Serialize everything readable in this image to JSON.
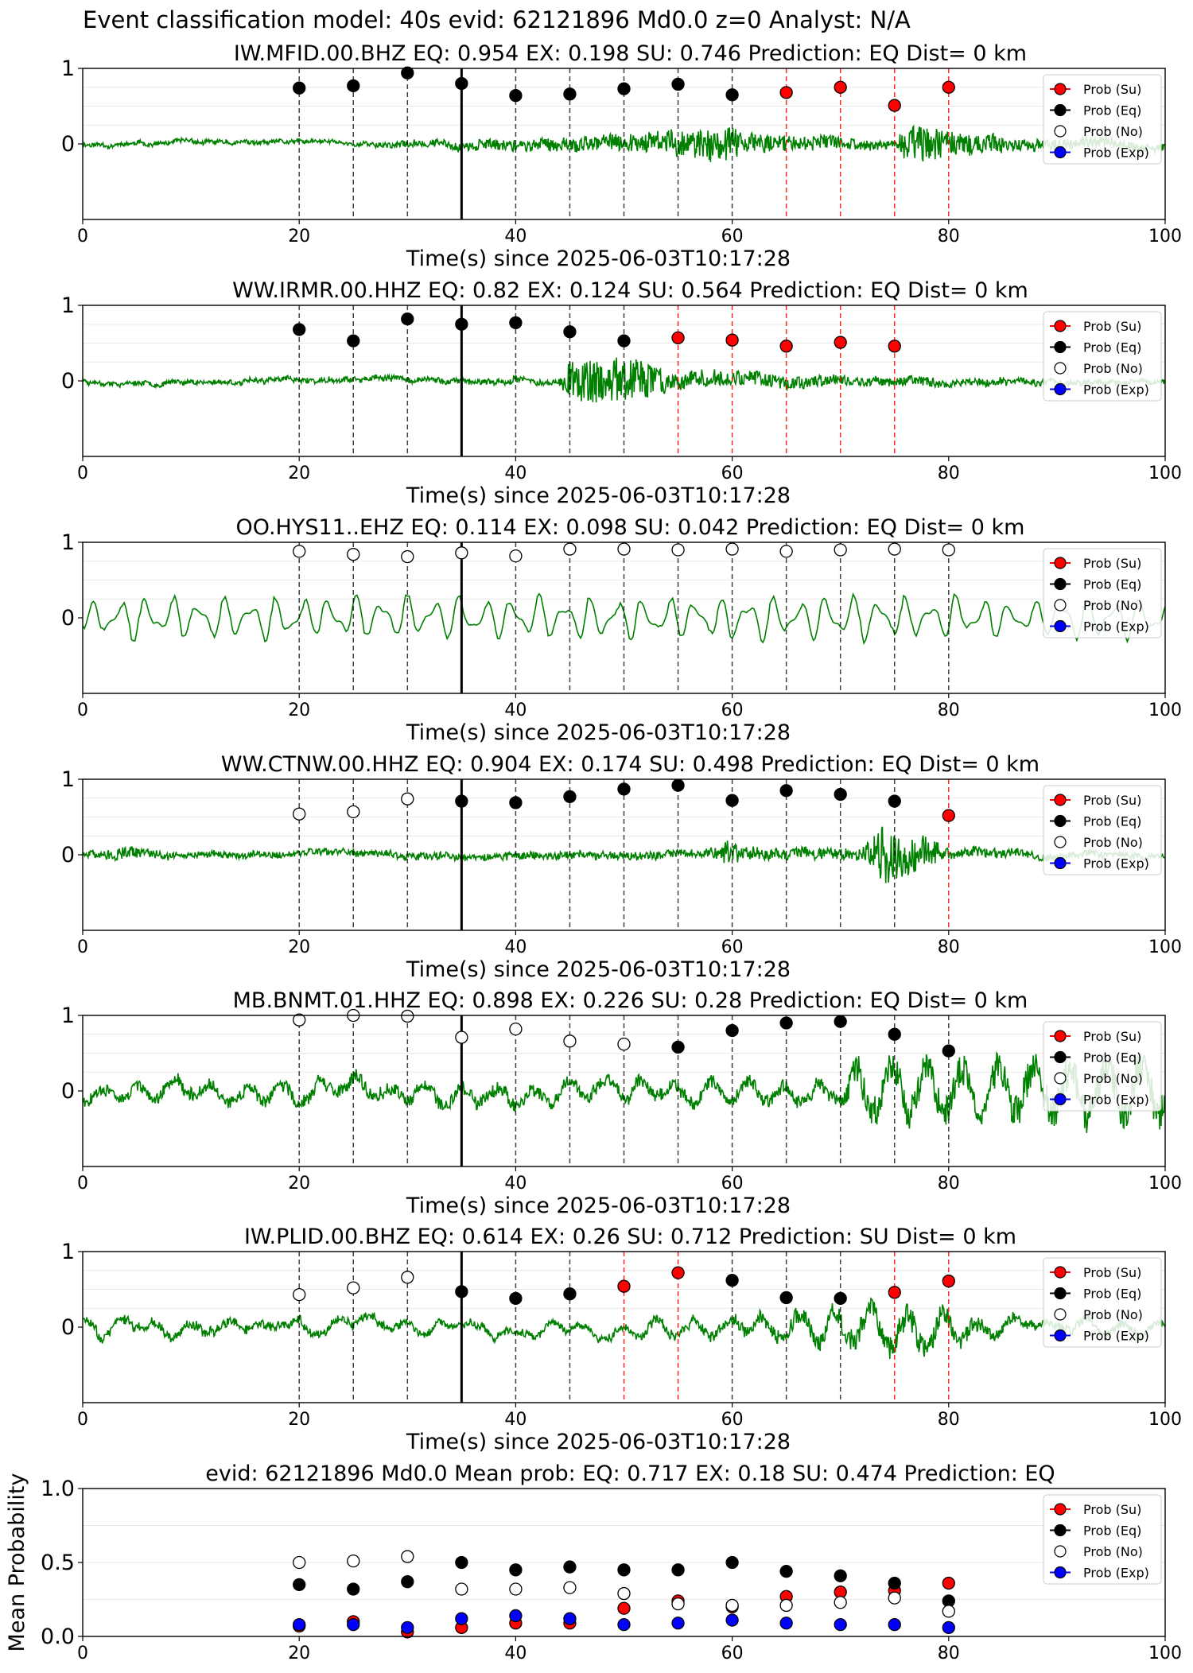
{
  "suptitle": "Event classification model: 40s evid: 62121896 Md0.0 z=0 Analyst: N/A",
  "colors": {
    "waveform": "#008000",
    "su": "#ff0000",
    "eq": "#000000",
    "no": "#ffffff",
    "exp": "#0000ff",
    "eq_line": "#000000",
    "su_line": "#ff0000"
  },
  "legend_labels": [
    "Prob (Su)",
    "Prob (Eq)",
    "Prob (No)",
    "Prob (Exp)"
  ],
  "chart_data": [
    {
      "type": "scatter",
      "title": "IW.MFID.00.BHZ   EQ: 0.954  EX: 0.198  SU: 0.746   Prediction: EQ    Dist= 0 km",
      "xlabel": "Time(s) since 2025-06-03T10:17:28",
      "ylabel": "",
      "xlim": [
        0,
        100
      ],
      "ylim": [
        -1,
        1
      ],
      "xticks": [
        "0",
        "20",
        "40",
        "60",
        "80",
        "100"
      ],
      "yticks": [
        "1",
        "0"
      ],
      "legend_position": "top-right",
      "origin_time": 35,
      "series": [
        {
          "name": "Prob (Eq)",
          "x": [
            20,
            25,
            30,
            35,
            40,
            45,
            50,
            55,
            60
          ],
          "y": [
            0.74,
            0.77,
            0.94,
            0.8,
            0.64,
            0.66,
            0.73,
            0.79,
            0.65
          ]
        },
        {
          "name": "Prob (Su)",
          "x": [
            65,
            70,
            75,
            80
          ],
          "y": [
            0.68,
            0.75,
            0.51,
            0.75
          ]
        }
      ],
      "trace": {
        "seed": 11,
        "baseline": 0.06,
        "segments": [
          [
            0,
            0.04
          ],
          [
            25,
            0.04
          ],
          [
            50,
            0.16
          ],
          [
            60,
            0.35
          ],
          [
            61,
            0.2
          ],
          [
            75,
            0.08
          ],
          [
            76,
            0.4
          ],
          [
            82,
            0.22
          ],
          [
            86,
            0.12
          ],
          [
            100,
            0.08
          ]
        ]
      }
    },
    {
      "type": "scatter",
      "title": "WW.IRMR.00.HHZ   EQ: 0.82  EX: 0.124  SU: 0.564   Prediction: EQ    Dist= 0 km",
      "xlabel": "Time(s) since 2025-06-03T10:17:28",
      "ylabel": "",
      "xlim": [
        0,
        100
      ],
      "ylim": [
        -1,
        1
      ],
      "xticks": [
        "0",
        "20",
        "40",
        "60",
        "80",
        "100"
      ],
      "yticks": [
        "1",
        "0"
      ],
      "legend_position": "top-right",
      "origin_time": 35,
      "series": [
        {
          "name": "Prob (Eq)",
          "x": [
            20,
            25,
            30,
            35,
            40,
            45,
            50
          ],
          "y": [
            0.68,
            0.53,
            0.82,
            0.75,
            0.77,
            0.65,
            0.53
          ]
        },
        {
          "name": "Prob (Su)",
          "x": [
            55,
            60,
            65,
            70,
            75
          ],
          "y": [
            0.57,
            0.54,
            0.46,
            0.51,
            0.46
          ]
        }
      ],
      "trace": {
        "seed": 23,
        "baseline": 0.0,
        "segments": [
          [
            0,
            0.04
          ],
          [
            44,
            0.06
          ],
          [
            45,
            0.4
          ],
          [
            50,
            0.45
          ],
          [
            55,
            0.18
          ],
          [
            70,
            0.1
          ],
          [
            100,
            0.04
          ]
        ]
      }
    },
    {
      "type": "scatter",
      "title": "OO.HYS11..EHZ   EQ: 0.114  EX: 0.098  SU: 0.042   Prediction: EQ    Dist= 0 km",
      "xlabel": "Time(s) since 2025-06-03T10:17:28",
      "ylabel": "",
      "xlim": [
        0,
        100
      ],
      "ylim": [
        -1,
        1
      ],
      "xticks": [
        "0",
        "20",
        "40",
        "60",
        "80",
        "100"
      ],
      "yticks": [
        "1",
        "0"
      ],
      "legend_position": "top-right",
      "origin_time": 35,
      "series": [
        {
          "name": "Prob (No)",
          "x": [
            20,
            25,
            30,
            35,
            40,
            45,
            50,
            55,
            60,
            65,
            70,
            75,
            80
          ],
          "y": [
            0.88,
            0.84,
            0.81,
            0.86,
            0.82,
            0.91,
            0.91,
            0.9,
            0.91,
            0.88,
            0.9,
            0.91,
            0.9
          ]
        }
      ],
      "trace": {
        "seed": 37,
        "baseline": 0.0,
        "smooth": true,
        "segments": [
          [
            0,
            0.4
          ],
          [
            100,
            0.4
          ]
        ]
      }
    },
    {
      "type": "scatter",
      "title": "WW.CTNW.00.HHZ   EQ: 0.904  EX: 0.174  SU: 0.498   Prediction: EQ    Dist= 0 km",
      "xlabel": "Time(s) since 2025-06-03T10:17:28",
      "ylabel": "",
      "xlim": [
        0,
        100
      ],
      "ylim": [
        -1,
        1
      ],
      "xticks": [
        "0",
        "20",
        "40",
        "60",
        "80",
        "100"
      ],
      "yticks": [
        "1",
        "0"
      ],
      "legend_position": "top-right",
      "origin_time": 35,
      "series": [
        {
          "name": "Prob (No)",
          "x": [
            20,
            25,
            30
          ],
          "y": [
            0.54,
            0.57,
            0.74
          ]
        },
        {
          "name": "Prob (Eq)",
          "x": [
            35,
            40,
            45,
            50,
            55,
            60,
            65,
            70,
            75
          ],
          "y": [
            0.71,
            0.69,
            0.77,
            0.87,
            0.92,
            0.72,
            0.85,
            0.8,
            0.71
          ]
        },
        {
          "name": "Prob (Su)",
          "x": [
            80
          ],
          "y": [
            0.52
          ]
        }
      ],
      "trace": {
        "seed": 51,
        "baseline": 0.0,
        "segments": [
          [
            0,
            0.06
          ],
          [
            3,
            0.12
          ],
          [
            9,
            0.06
          ],
          [
            58,
            0.08
          ],
          [
            59,
            0.25
          ],
          [
            63,
            0.1
          ],
          [
            72,
            0.12
          ],
          [
            74,
            0.6
          ],
          [
            78,
            0.3
          ],
          [
            80,
            0.1
          ],
          [
            100,
            0.05
          ]
        ]
      }
    },
    {
      "type": "scatter",
      "title": "MB.BNMT.01.HHZ   EQ: 0.898  EX: 0.226  SU: 0.28   Prediction: EQ    Dist= 0 km",
      "xlabel": "Time(s) since 2025-06-03T10:17:28",
      "ylabel": "",
      "xlim": [
        0,
        100
      ],
      "ylim": [
        -1,
        1
      ],
      "xticks": [
        "0",
        "20",
        "40",
        "60",
        "80",
        "100"
      ],
      "yticks": [
        "1",
        "0"
      ],
      "legend_position": "top-right",
      "origin_time": 35,
      "series": [
        {
          "name": "Prob (No)",
          "x": [
            20,
            25,
            30,
            35,
            40,
            45,
            50
          ],
          "y": [
            0.94,
            1.0,
            0.99,
            0.71,
            0.82,
            0.66,
            0.62
          ]
        },
        {
          "name": "Prob (Eq)",
          "x": [
            55,
            60,
            65,
            70,
            75,
            80
          ],
          "y": [
            0.58,
            0.8,
            0.9,
            0.92,
            0.75,
            0.53
          ]
        }
      ],
      "trace": {
        "seed": 67,
        "baseline": 0.0,
        "smooth_noise": true,
        "segments": [
          [
            0,
            0.22
          ],
          [
            70,
            0.25
          ],
          [
            71,
            0.6
          ],
          [
            100,
            0.7
          ]
        ]
      }
    },
    {
      "type": "scatter",
      "title": "IW.PLID.00.BHZ   EQ: 0.614  EX: 0.26  SU: 0.712   Prediction: SU    Dist= 0 km",
      "xlabel": "Time(s) since 2025-06-03T10:17:28",
      "ylabel": "",
      "xlim": [
        0,
        100
      ],
      "ylim": [
        -1,
        1
      ],
      "xticks": [
        "0",
        "20",
        "40",
        "60",
        "80",
        "100"
      ],
      "yticks": [
        "1",
        "0"
      ],
      "legend_position": "top-right",
      "origin_time": 35,
      "series": [
        {
          "name": "Prob (No)",
          "x": [
            20,
            25,
            30
          ],
          "y": [
            0.43,
            0.52,
            0.66
          ]
        },
        {
          "name": "Prob (Eq)",
          "x": [
            35,
            40,
            45,
            60,
            65,
            70
          ],
          "y": [
            0.47,
            0.38,
            0.44,
            0.62,
            0.39,
            0.38
          ]
        },
        {
          "name": "Prob (Su)",
          "x": [
            50,
            55,
            75,
            80
          ],
          "y": [
            0.54,
            0.72,
            0.46,
            0.61
          ]
        }
      ],
      "trace": {
        "seed": 83,
        "baseline": 0.0,
        "smooth_noise": true,
        "segments": [
          [
            0,
            0.18
          ],
          [
            45,
            0.12
          ],
          [
            60,
            0.2
          ],
          [
            72,
            0.45
          ],
          [
            77,
            0.5
          ],
          [
            85,
            0.2
          ],
          [
            100,
            0.15
          ]
        ]
      }
    },
    {
      "type": "scatter",
      "title": "evid: 62121896  Md0.0   Mean prob:   EQ: 0.717  EX: 0.18  SU: 0.474   Prediction: EQ",
      "xlabel": "",
      "ylabel": "Mean Probability",
      "xlim": [
        0,
        100
      ],
      "ylim": [
        0,
        1
      ],
      "xticks": [
        "0",
        "20",
        "40",
        "60",
        "80",
        "100"
      ],
      "yticks": [
        "1.0",
        "0.5",
        "0.0"
      ],
      "legend_position": "top-right",
      "series": [
        {
          "name": "Prob (Su)",
          "x": [
            20,
            25,
            30,
            35,
            40,
            45,
            50,
            55,
            60,
            65,
            70,
            75,
            80
          ],
          "y": [
            0.07,
            0.1,
            0.03,
            0.06,
            0.09,
            0.09,
            0.19,
            0.24,
            0.2,
            0.27,
            0.3,
            0.31,
            0.36
          ]
        },
        {
          "name": "Prob (Eq)",
          "x": [
            20,
            25,
            30,
            35,
            40,
            45,
            50,
            55,
            60,
            65,
            70,
            75,
            80
          ],
          "y": [
            0.35,
            0.32,
            0.37,
            0.5,
            0.45,
            0.47,
            0.45,
            0.45,
            0.5,
            0.44,
            0.41,
            0.36,
            0.24
          ]
        },
        {
          "name": "Prob (No)",
          "x": [
            20,
            25,
            30,
            35,
            40,
            45,
            50,
            55,
            60,
            65,
            70,
            75,
            80
          ],
          "y": [
            0.5,
            0.51,
            0.54,
            0.32,
            0.32,
            0.33,
            0.29,
            0.22,
            0.21,
            0.21,
            0.23,
            0.26,
            0.17
          ]
        },
        {
          "name": "Prob (Exp)",
          "x": [
            20,
            25,
            30,
            35,
            40,
            45,
            50,
            55,
            60,
            65,
            70,
            75,
            80
          ],
          "y": [
            0.08,
            0.08,
            0.06,
            0.12,
            0.14,
            0.12,
            0.08,
            0.09,
            0.11,
            0.09,
            0.08,
            0.08,
            0.06
          ]
        }
      ]
    }
  ]
}
